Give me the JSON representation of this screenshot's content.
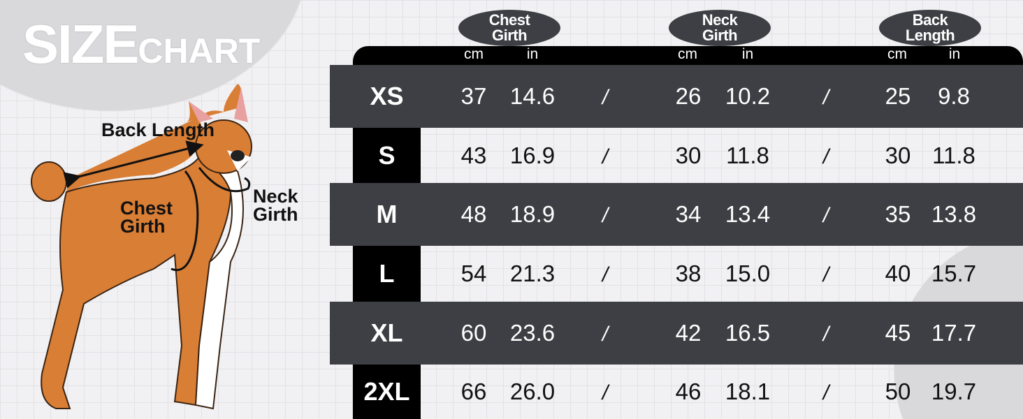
{
  "title": {
    "big": "SIZE",
    "small": "CHART"
  },
  "dog_labels": {
    "back": "Back Length",
    "chest": "Chest Girth",
    "neck": "Neck Girth"
  },
  "columns": [
    {
      "name": "Chest Girth",
      "line1": "Chest",
      "line2": "Girth",
      "units": [
        "cm",
        "in"
      ]
    },
    {
      "name": "Neck Girth",
      "line1": "Neck",
      "line2": "Girth",
      "units": [
        "cm",
        "in"
      ]
    },
    {
      "name": "Back Length",
      "line1": "Back",
      "line2": "Length",
      "units": [
        "cm",
        "in"
      ]
    }
  ],
  "separator": "/",
  "rows": [
    {
      "size": "XS",
      "values": [
        "37",
        "14.6",
        "26",
        "10.2",
        "25",
        "9.8"
      ]
    },
    {
      "size": "S",
      "values": [
        "43",
        "16.9",
        "30",
        "11.8",
        "30",
        "11.8"
      ]
    },
    {
      "size": "M",
      "values": [
        "48",
        "18.9",
        "34",
        "13.4",
        "35",
        "13.8"
      ]
    },
    {
      "size": "L",
      "values": [
        "54",
        "21.3",
        "38",
        "15.0",
        "40",
        "15.7"
      ]
    },
    {
      "size": "XL",
      "values": [
        "60",
        "23.6",
        "42",
        "16.5",
        "45",
        "17.7"
      ]
    },
    {
      "size": "2XL",
      "values": [
        "66",
        "26.0",
        "46",
        "18.1",
        "50",
        "19.7"
      ]
    }
  ],
  "colors": {
    "dark_row": "#3e3f44",
    "header": "#000000",
    "dog_fur": "#d97e35"
  }
}
